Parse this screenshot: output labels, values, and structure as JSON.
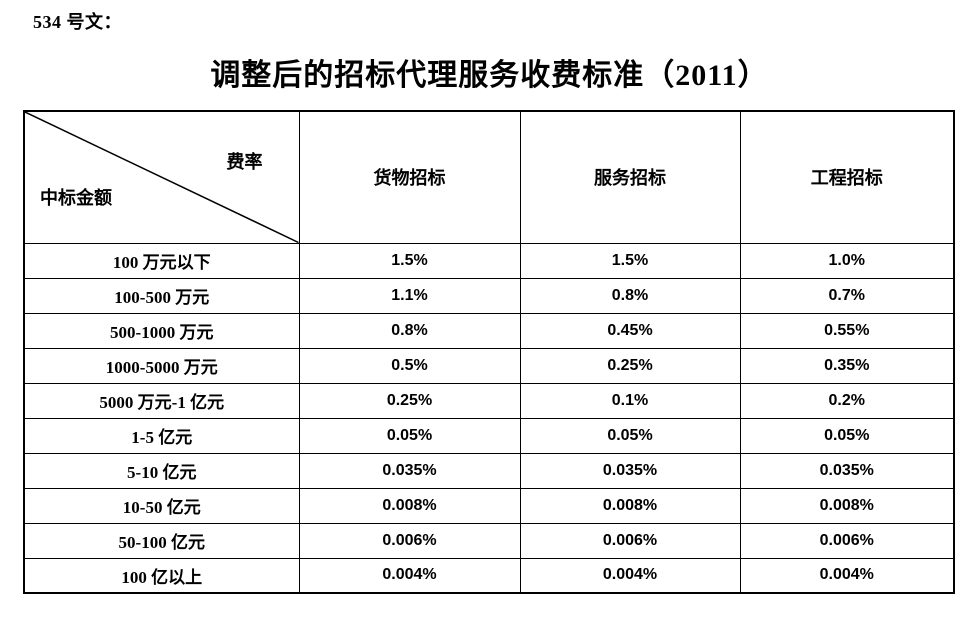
{
  "doc": {
    "doc_number": "534 号文：",
    "title": "调整后的招标代理服务收费标准（2011）"
  },
  "table": {
    "corner": {
      "top_right": "费率",
      "bottom_left": "中标金额"
    },
    "columns": [
      "货物招标",
      "服务招标",
      "工程招标"
    ],
    "rows": [
      {
        "label": "100 万元以下",
        "values": [
          "1.5%",
          "1.5%",
          "1.0%"
        ]
      },
      {
        "label": "100-500 万元",
        "values": [
          "1.1%",
          "0.8%",
          "0.7%"
        ]
      },
      {
        "label": "500-1000 万元",
        "values": [
          "0.8%",
          "0.45%",
          "0.55%"
        ]
      },
      {
        "label": "1000-5000 万元",
        "values": [
          "0.5%",
          "0.25%",
          "0.35%"
        ]
      },
      {
        "label": "5000 万元-1 亿元",
        "values": [
          "0.25%",
          "0.1%",
          "0.2%"
        ]
      },
      {
        "label": "1-5 亿元",
        "values": [
          "0.05%",
          "0.05%",
          "0.05%"
        ]
      },
      {
        "label": "5-10 亿元",
        "values": [
          "0.035%",
          "0.035%",
          "0.035%"
        ]
      },
      {
        "label": "10-50 亿元",
        "values": [
          "0.008%",
          "0.008%",
          "0.008%"
        ]
      },
      {
        "label": "50-100 亿元",
        "values": [
          "0.006%",
          "0.006%",
          "0.006%"
        ]
      },
      {
        "label": "100 亿以上",
        "values": [
          "0.004%",
          "0.004%",
          "0.004%"
        ]
      }
    ]
  },
  "colors": {
    "text": "#000000",
    "background": "#ffffff",
    "border": "#000000"
  }
}
